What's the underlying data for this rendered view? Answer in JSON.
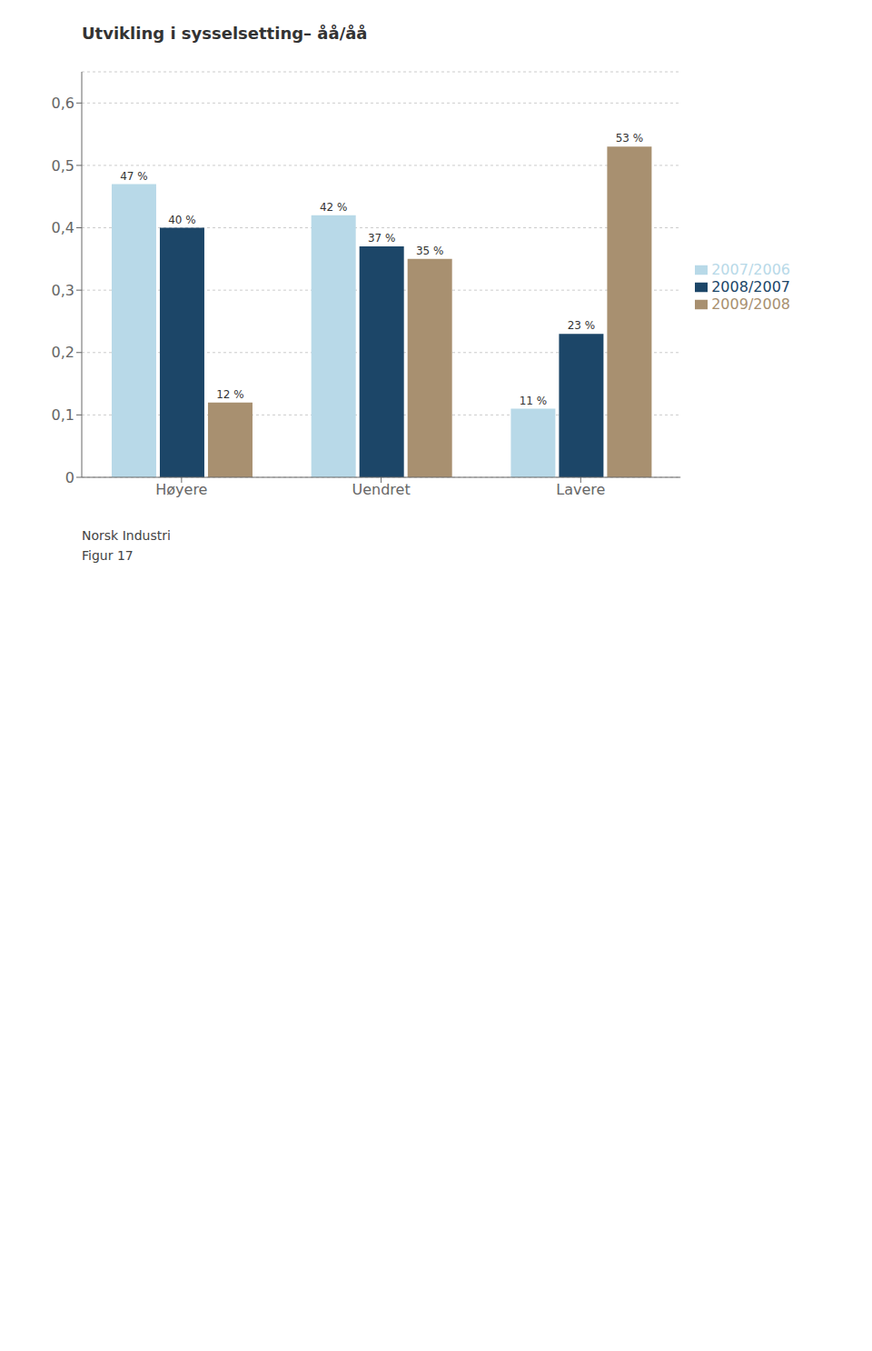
{
  "chart_data": {
    "type": "bar",
    "title": "Utvikling i sysselsetting– åå/åå",
    "categories": [
      "Høyere",
      "Uendret",
      "Lavere"
    ],
    "series": [
      {
        "name": "2007/2006",
        "color": "#b8d9e8",
        "values": [
          0.47,
          0.42,
          0.11
        ],
        "value_labels": [
          "47 %",
          "42 %",
          "11 %"
        ]
      },
      {
        "name": "2008/2007",
        "color": "#1c4668",
        "values": [
          0.4,
          0.37,
          0.23
        ],
        "value_labels": [
          "40 %",
          "37 %",
          "23 %"
        ]
      },
      {
        "name": "2009/2008",
        "color": "#a89070",
        "values": [
          0.12,
          0.35,
          0.53
        ],
        "value_labels": [
          "12 %",
          "35 %",
          "53 %"
        ]
      }
    ],
    "ylim": [
      0,
      0.65
    ],
    "yticks": [
      0,
      {
        "value": 0.1,
        "label": "0,1"
      },
      {
        "value": 0.2,
        "label": "0,2"
      },
      {
        "value": 0.3,
        "label": "0,3"
      },
      {
        "value": 0.4,
        "label": "0,4"
      },
      {
        "value": 0.5,
        "label": "0,5"
      },
      {
        "value": 0.6,
        "label": "0,6"
      }
    ],
    "grid": true,
    "legend": "right",
    "data_labels": true,
    "annotations": [
      "Norsk Industri",
      "Figur 17"
    ]
  }
}
